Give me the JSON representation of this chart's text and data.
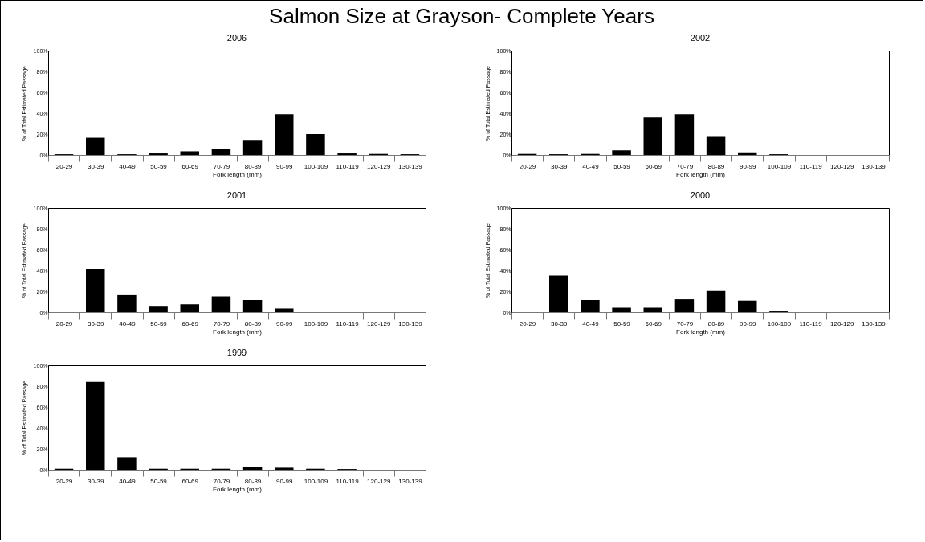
{
  "chart_data": [
    {
      "type": "bar",
      "title": "Salmon Size at Grayson- Complete Years",
      "subtitle": "2006",
      "xlabel": "Fork length (mm)",
      "ylabel": "% of Total Estimated Passage",
      "categories": [
        "20-29",
        "30-39",
        "40-49",
        "50-59",
        "60-69",
        "70-79",
        "80-89",
        "90-99",
        "100-109",
        "110-119",
        "120-129",
        "130-139"
      ],
      "values": [
        0.7,
        16.5,
        0.7,
        1.5,
        3.5,
        5.5,
        14.5,
        39,
        20,
        1.5,
        1,
        0.7
      ],
      "color": "#000000",
      "ylim": [
        0,
        100
      ],
      "yticks": [
        {
          "value": 0,
          "label": "0%"
        },
        {
          "value": 20,
          "label": "20%"
        },
        {
          "value": 40,
          "label": "40%"
        },
        {
          "value": 60,
          "label": "60%"
        },
        {
          "value": 80,
          "label": "80%"
        },
        {
          "value": 100,
          "label": "100%"
        }
      ]
    },
    {
      "type": "bar",
      "title": "2002",
      "xlabel": "Fork length (mm)",
      "ylabel": "% of Total Estimated Passage",
      "categories": [
        "20-29",
        "30-39",
        "40-49",
        "50-59",
        "60-69",
        "70-79",
        "80-89",
        "90-99",
        "100-109",
        "110-119",
        "120-129",
        "130-139"
      ],
      "values": [
        1,
        0.7,
        1,
        4.5,
        36,
        39,
        18,
        2.5,
        0.7,
        null,
        null,
        null
      ],
      "color": "#000000",
      "ylim": [
        0,
        100
      ],
      "yticks": [
        {
          "value": 0,
          "label": "0%"
        },
        {
          "value": 20,
          "label": "20%"
        },
        {
          "value": 40,
          "label": "40%"
        },
        {
          "value": 60,
          "label": "60%"
        },
        {
          "value": 80,
          "label": "80%"
        },
        {
          "value": 100,
          "label": "100%"
        }
      ]
    },
    {
      "type": "bar",
      "title": "2001",
      "xlabel": "Fork length (mm)",
      "ylabel": "% of Total Estimated Passage",
      "categories": [
        "20-29",
        "30-39",
        "40-49",
        "50-59",
        "60-69",
        "70-79",
        "80-89",
        "90-99",
        "100-109",
        "110-119",
        "120-129",
        "130-139"
      ],
      "values": [
        0.7,
        41.5,
        17,
        6,
        7.5,
        15,
        12,
        3.5,
        0.7,
        0.7,
        0.7,
        null
      ],
      "color": "#000000",
      "ylim": [
        0,
        100
      ],
      "yticks": [
        {
          "value": 0,
          "label": "0%"
        },
        {
          "value": 20,
          "label": "20%"
        },
        {
          "value": 40,
          "label": "40%"
        },
        {
          "value": 60,
          "label": "60%"
        },
        {
          "value": 80,
          "label": "80%"
        },
        {
          "value": 100,
          "label": "100%"
        }
      ]
    },
    {
      "type": "bar",
      "title": "2000",
      "xlabel": "Fork length (mm)",
      "ylabel": "% of Total Estimated Passage",
      "categories": [
        "20-29",
        "30-39",
        "40-49",
        "50-59",
        "60-69",
        "70-79",
        "80-89",
        "90-99",
        "100-109",
        "110-119",
        "120-129",
        "130-139"
      ],
      "values": [
        0.7,
        35,
        12,
        5,
        5,
        13,
        21,
        11,
        1.5,
        0.7,
        null,
        null
      ],
      "color": "#000000",
      "ylim": [
        0,
        100
      ],
      "yticks": [
        {
          "value": 0,
          "label": "0%"
        },
        {
          "value": 20,
          "label": "20%"
        },
        {
          "value": 40,
          "label": "40%"
        },
        {
          "value": 60,
          "label": "60%"
        },
        {
          "value": 80,
          "label": "80%"
        },
        {
          "value": 100,
          "label": "100%"
        }
      ]
    },
    {
      "type": "bar",
      "title": "1999",
      "xlabel": "Fork length (mm)",
      "ylabel": "% of Total Estimated Passage",
      "categories": [
        "20-29",
        "30-39",
        "40-49",
        "50-59",
        "60-69",
        "70-79",
        "80-89",
        "90-99",
        "100-109",
        "110-119",
        "120-129",
        "130-139"
      ],
      "values": [
        1,
        84,
        12,
        1,
        1,
        1,
        3,
        2,
        1,
        0.7,
        null,
        null
      ],
      "color": "#000000",
      "ylim": [
        0,
        100
      ],
      "yticks": [
        {
          "value": 0,
          "label": "0%"
        },
        {
          "value": 20,
          "label": "20%"
        },
        {
          "value": 40,
          "label": "40%"
        },
        {
          "value": 60,
          "label": "60%"
        },
        {
          "value": 80,
          "label": "80%"
        },
        {
          "value": 100,
          "label": "100%"
        }
      ]
    }
  ]
}
